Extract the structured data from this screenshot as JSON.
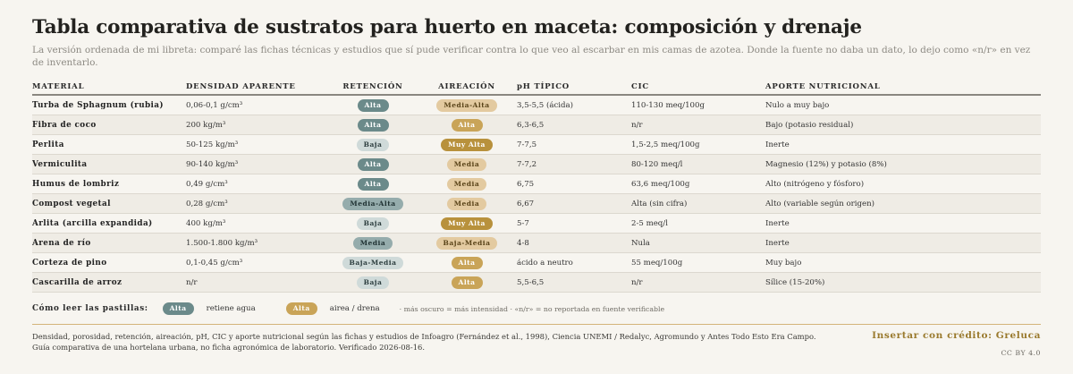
{
  "title": "Tabla comparativa de sustratos para huerto en maceta: composición y drenaje",
  "subtitle": "La versión ordenada de mi libreta: comparé las fichas técnicas y estudios que sí pude verificar contra lo que veo al escarbar en mis camas de azotea. Donde la fuente no daba un dato, lo dejo como «n/r» en vez de inventarlo.",
  "table": {
    "headers": [
      "MATERIAL",
      "DENSIDAD APARENTE",
      "RETENCIÓN",
      "AIREACIÓN",
      "pH TÍPICO",
      "CIC",
      "APORTE NUTRICIONAL"
    ],
    "rows": [
      {
        "material": "Turba de Sphagnum (rubia)",
        "densidad": "0,06-0,1 g/cm³",
        "retencion": "Alta",
        "retencion_tone": "t-dark",
        "aireacion": "Media-Alta",
        "aireacion_tone": "g-light",
        "ph": "3,5-5,5 (ácida)",
        "cic": "110-130 meq/100g",
        "aporte": "Nulo a muy bajo"
      },
      {
        "material": "Fibra de coco",
        "densidad": "200 kg/m³",
        "retencion": "Alta",
        "retencion_tone": "t-dark",
        "aireacion": "Alta",
        "aireacion_tone": "g-mid",
        "ph": "6,3-6,5",
        "cic": "n/r",
        "aporte": "Bajo (potasio residual)"
      },
      {
        "material": "Perlita",
        "densidad": "50-125 kg/m³",
        "retencion": "Baja",
        "retencion_tone": "t-light",
        "aireacion": "Muy Alta",
        "aireacion_tone": "g-dark",
        "ph": "7-7,5",
        "cic": "1,5-2,5 meq/100g",
        "aporte": "Inerte"
      },
      {
        "material": "Vermiculita",
        "densidad": "90-140 kg/m³",
        "retencion": "Alta",
        "retencion_tone": "t-dark",
        "aireacion": "Media",
        "aireacion_tone": "g-light",
        "ph": "7-7,2",
        "cic": "80-120 meq/l",
        "aporte": "Magnesio (12%) y potasio (8%)"
      },
      {
        "material": "Humus de lombriz",
        "densidad": "0,49 g/cm³",
        "retencion": "Alta",
        "retencion_tone": "t-dark",
        "aireacion": "Media",
        "aireacion_tone": "g-light",
        "ph": "6,75",
        "cic": "63,6 meq/100g",
        "aporte": "Alto (nitrógeno y fósforo)"
      },
      {
        "material": "Compost vegetal",
        "densidad": "0,28 g/cm³",
        "retencion": "Media-Alta",
        "retencion_tone": "t-mid",
        "aireacion": "Media",
        "aireacion_tone": "g-light",
        "ph": "6,67",
        "cic": "Alta (sin cifra)",
        "aporte": "Alto (variable según origen)"
      },
      {
        "material": "Arlita (arcilla expandida)",
        "densidad": "400 kg/m³",
        "retencion": "Baja",
        "retencion_tone": "t-light",
        "aireacion": "Muy Alta",
        "aireacion_tone": "g-dark",
        "ph": "5-7",
        "cic": "2-5 meq/l",
        "aporte": "Inerte"
      },
      {
        "material": "Arena de río",
        "densidad": "1.500-1.800 kg/m³",
        "retencion": "Media",
        "retencion_tone": "t-mid",
        "aireacion": "Baja-Media",
        "aireacion_tone": "g-light",
        "ph": "4-8",
        "cic": "Nula",
        "aporte": "Inerte"
      },
      {
        "material": "Corteza de pino",
        "densidad": "0,1-0,45 g/cm³",
        "retencion": "Baja-Media",
        "retencion_tone": "t-light",
        "aireacion": "Alta",
        "aireacion_tone": "g-mid",
        "ph": "ácido a neutro",
        "cic": "55 meq/100g",
        "aporte": "Muy bajo"
      },
      {
        "material": "Cascarilla de arroz",
        "densidad": "n/r",
        "retencion": "Baja",
        "retencion_tone": "t-light",
        "aireacion": "Alta",
        "aireacion_tone": "g-mid",
        "ph": "5,5-6,5",
        "cic": "n/r",
        "aporte": "Sílice (15-20%)"
      }
    ]
  },
  "legend": {
    "label": "Cómo leer las pastillas:",
    "pill1": "Alta",
    "text1": "retiene agua",
    "pill2": "Alta",
    "text2": "airea / drena",
    "note": "· más oscuro = más intensidad · «n/r» = no reportada en fuente verificable"
  },
  "footer": {
    "sources": "Densidad, porosidad, retención, aireación, pH, CIC y aporte nutricional según las fichas y estudios de Infoagro (Fernández et al., 1998), Ciencia UNEMI / Redalyc, Agromundo y Antes Todo Esto Era Campo.",
    "note": "Guía comparativa de una hortelana urbana, no ficha agronómica de laboratorio. Verificado 2026-08-16.",
    "credit": "Insertar con crédito: Greluca",
    "license": "CC BY 4.0"
  },
  "colors": {
    "teal_dark": "#6b8a8a",
    "teal_mid": "#95acac",
    "teal_light": "#cfdad9",
    "gold_dark": "#b8913c",
    "gold_mid": "#c9a458",
    "gold_light": "#e3caa0",
    "credit": "#9a7a2e"
  }
}
